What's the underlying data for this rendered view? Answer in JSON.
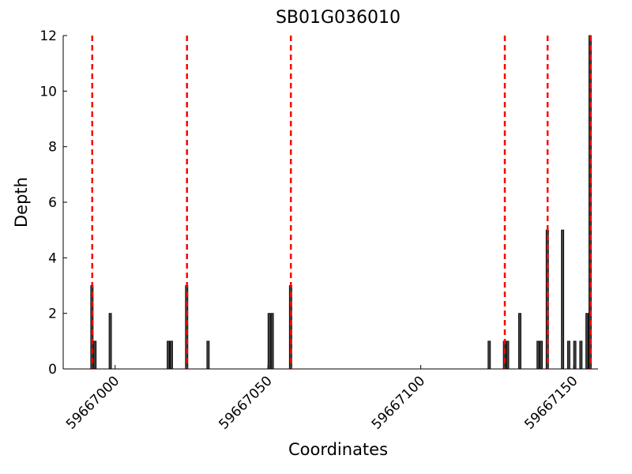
{
  "chart_data": {
    "type": "bar",
    "title": "SB01G036010",
    "x_label": "Coordinates",
    "y_label": "Depth",
    "x": [
      59666992,
      59666993,
      59666998,
      59667017,
      59667018,
      59667023,
      59667030,
      59667050,
      59667051,
      59667057,
      59667122,
      59667127,
      59667128,
      59667132,
      59667138,
      59667139,
      59667141,
      59667146,
      59667148,
      59667150,
      59667152,
      59667154,
      59667155
    ],
    "values": [
      3,
      1,
      2,
      1,
      1,
      3,
      1,
      2,
      2,
      3,
      1,
      1,
      1,
      2,
      1,
      1,
      5,
      5,
      1,
      1,
      1,
      2,
      12
    ],
    "color": "#404040",
    "vlines": {
      "x": [
        59666992.5,
        59667023.5,
        59667057.5,
        59667127.5,
        59667141.5,
        59667155.5
      ],
      "color": "#ff0000"
    },
    "xlim": [
      59666983,
      59667158
    ],
    "xticks": [
      59667000,
      59667050,
      59667100,
      59667150
    ],
    "ylim": [
      0,
      12
    ],
    "yticks": [
      0,
      2,
      4,
      6,
      8,
      10,
      12
    ]
  }
}
